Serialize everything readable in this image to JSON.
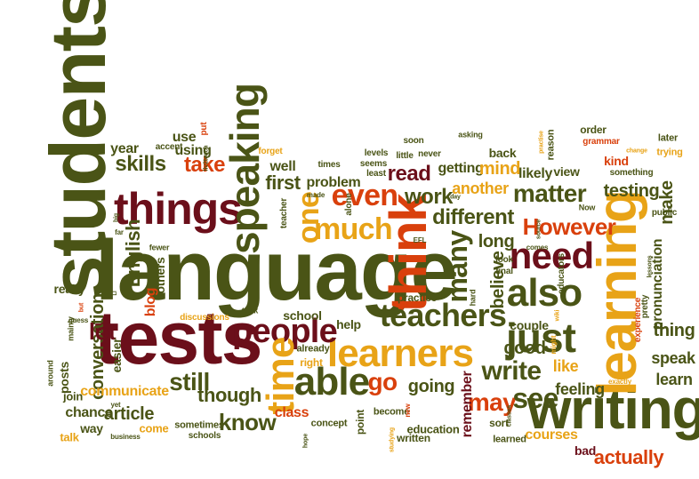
{
  "colors": {
    "dark_red": "#6b0f1a",
    "olive": "#4a5416",
    "orange": "#e8a317",
    "red": "#d9400c",
    "gold": "#c78e12"
  },
  "words": {
    "students": "students",
    "language": "language",
    "tests": "tests",
    "writing": "writing",
    "learning": "learning",
    "think": "think",
    "things": "things",
    "speaking": "speaking",
    "teachers": "teachers",
    "also": "also",
    "learners": "learners",
    "just": "just",
    "people": "people",
    "time": "time",
    "able": "able",
    "need": "need",
    "much": "much",
    "even": "even",
    "one": "one",
    "skills": "skills",
    "take": "take",
    "work": "work",
    "first": "first",
    "read": "read",
    "matter": "matter",
    "testing": "testing",
    "different": "different",
    "However": "However",
    "many": "many",
    "make": "make",
    "English": "English",
    "conversation": "conversation",
    "lot": "lot",
    "still": "still",
    "though": "though",
    "know": "know",
    "go": "go",
    "may": "may",
    "see": "see",
    "write": "write",
    "going": "going",
    "remember": "remember",
    "good": "good",
    "believe": "believe",
    "long": "long",
    "another": "another",
    "getting": "getting",
    "mind": "mind",
    "likely": "likely",
    "pronunciation": "pronunciation",
    "thing": "thing",
    "speak": "speak",
    "learn": "learn",
    "feeling": "feeling",
    "like": "like",
    "actually": "actually",
    "courses": "courses",
    "bad": "bad",
    "education": "education",
    "article": "article",
    "communicate": "communicate",
    "chance": "chance",
    "class": "class",
    "help": "help",
    "couple": "couple",
    "school": "school",
    "problem": "problem",
    "well": "well",
    "use": "use",
    "using": "using",
    "year": "year",
    "blog": "blog",
    "others": "others",
    "really": "really",
    "easier": "easier",
    "posts": "posts",
    "join": "join",
    "way": "way",
    "come": "come",
    "talk": "talk",
    "sometimes": "sometimes",
    "schools": "schools",
    "concept": "concept",
    "point": "point",
    "become": "become",
    "written": "written",
    "learned": "learned",
    "sort": "sort",
    "practice": "practice",
    "right": "right",
    "already": "already",
    "view": "view",
    "kind": "kind",
    "order": "order",
    "grammar": "grammar",
    "later": "later",
    "trying": "trying",
    "public": "public",
    "experience": "experience",
    "pretty": "pretty",
    "educators": "educators",
    "look": "look",
    "final": "final",
    "asking": "asking",
    "back": "back",
    "soon": "soon",
    "little": "little",
    "never": "never",
    "least": "least",
    "seems": "seems",
    "levels": "levels",
    "times": "times",
    "forget": "forget",
    "put": "put",
    "accent": "accent",
    "teacher": "teacher",
    "made": "made",
    "alone": "alone",
    "discussions": "discussions",
    "took": "took",
    "mainly": "mainly",
    "guess": "guess",
    "around": "around",
    "yet": "yet",
    "business": "business",
    "fewer": "fewer",
    "far": "far",
    "big": "big",
    "hard": "hard",
    "get": "get",
    "new": "new",
    "might": "might",
    "wiki": "wiki",
    "classes": "classes",
    "studying": "studying",
    "hope": "hope",
    "exactly": "exactly",
    "something": "something",
    "change": "change",
    "reason": "reason",
    "practise": "practise",
    "source": "source",
    "EFL": "EFL",
    "day": "day",
    "Now": "Now",
    "lessons": "lessons",
    "comes": "comes",
    "liv2teach": "liv2teach",
    "but": "but",
    "LI": "LI"
  }
}
